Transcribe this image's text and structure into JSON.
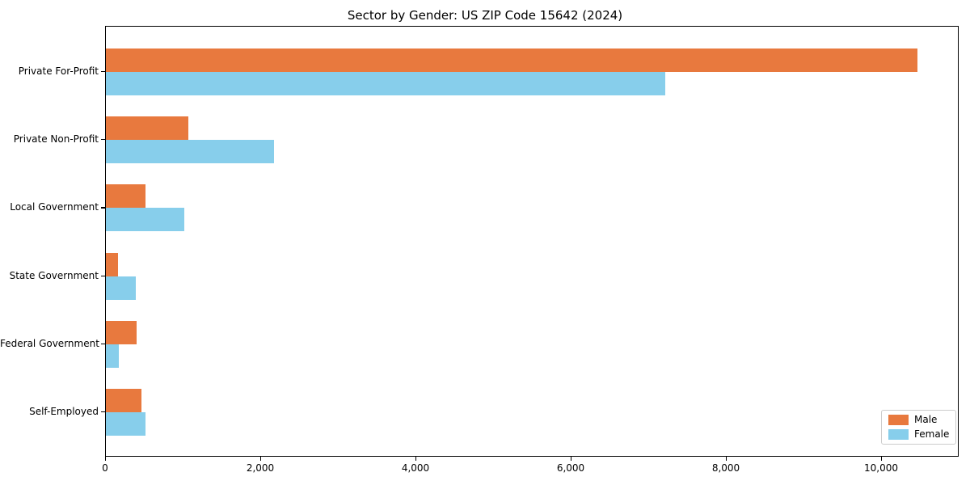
{
  "chart_data": {
    "type": "bar",
    "orientation": "horizontal",
    "title": "Sector by Gender: US ZIP Code 15642 (2024)",
    "categories": [
      "Private For-Profit",
      "Private Non-Profit",
      "Local Government",
      "State Government",
      "Federal Government",
      "Self-Employed"
    ],
    "series": [
      {
        "name": "Male",
        "color": "#e8793e",
        "values": [
          10480,
          1060,
          510,
          160,
          400,
          460
        ]
      },
      {
        "name": "Female",
        "color": "#87ceeb",
        "values": [
          7220,
          2170,
          1010,
          390,
          170,
          510
        ]
      }
    ],
    "xlabel": "",
    "ylabel": "",
    "xlim": [
      0,
      11000
    ],
    "xticks": [
      0,
      2000,
      4000,
      6000,
      8000,
      10000
    ],
    "xtick_labels": [
      "0",
      "2,000",
      "4,000",
      "6,000",
      "8,000",
      "10,000"
    ],
    "legend_position": "lower right",
    "grid": false,
    "background_color": "#ffffff",
    "spine_color": "#000000"
  }
}
